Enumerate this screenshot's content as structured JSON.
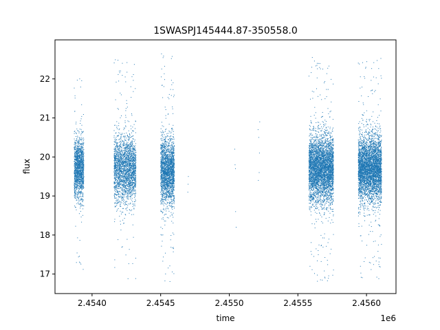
{
  "chart_data": {
    "type": "scatter",
    "title": "1SWASPJ145444.87-350558.0",
    "xlabel": "time",
    "ylabel": "flux",
    "x_offset_label": "1e6",
    "xlim": [
      2453730,
      2456215
    ],
    "ylim": [
      16.5,
      23.0
    ],
    "x_ticks": [
      2454000,
      2454500,
      2455000,
      2455500,
      2456000
    ],
    "x_tick_labels": [
      "2.4540",
      "2.4545",
      "2.4550",
      "2.4555",
      "2.4560"
    ],
    "y_ticks": [
      17,
      18,
      19,
      20,
      21,
      22
    ],
    "y_tick_labels": [
      "17",
      "18",
      "19",
      "20",
      "21",
      "22"
    ],
    "grid": false,
    "marker_color": "#1f77b4",
    "series": [
      {
        "clusters": [
          {
            "x_range": [
              2453870,
              2453940
            ],
            "center": 19.7,
            "core_spread": 0.55,
            "outlier_range": [
              16.8,
              22.3
            ],
            "count": 1500
          },
          {
            "x_range": [
              2454160,
              2454320
            ],
            "center": 19.7,
            "core_spread": 0.6,
            "outlier_range": [
              16.8,
              22.6
            ],
            "count": 2400
          },
          {
            "x_range": [
              2454500,
              2454600
            ],
            "center": 19.65,
            "core_spread": 0.6,
            "outlier_range": [
              16.8,
              22.7
            ],
            "count": 2200
          },
          {
            "x_range": [
              2455580,
              2455760
            ],
            "center": 19.7,
            "core_spread": 0.6,
            "outlier_range": [
              16.8,
              22.6
            ],
            "count": 4200
          },
          {
            "x_range": [
              2455940,
              2456110
            ],
            "center": 19.7,
            "core_spread": 0.6,
            "outlier_range": [
              16.8,
              22.6
            ],
            "count": 4200
          }
        ],
        "sparse_points": [
          {
            "x": 2454700,
            "y": 19.3
          },
          {
            "x": 2454702,
            "y": 19.5
          },
          {
            "x": 2454698,
            "y": 19.1
          },
          {
            "x": 2455040,
            "y": 20.2
          },
          {
            "x": 2455042,
            "y": 19.8
          },
          {
            "x": 2455045,
            "y": 19.7
          },
          {
            "x": 2455050,
            "y": 18.2
          },
          {
            "x": 2455046,
            "y": 18.6
          },
          {
            "x": 2455210,
            "y": 20.7
          },
          {
            "x": 2455215,
            "y": 20.5
          },
          {
            "x": 2455220,
            "y": 20.1
          },
          {
            "x": 2455218,
            "y": 19.6
          },
          {
            "x": 2455212,
            "y": 19.4
          },
          {
            "x": 2455222,
            "y": 20.9
          }
        ]
      }
    ]
  }
}
